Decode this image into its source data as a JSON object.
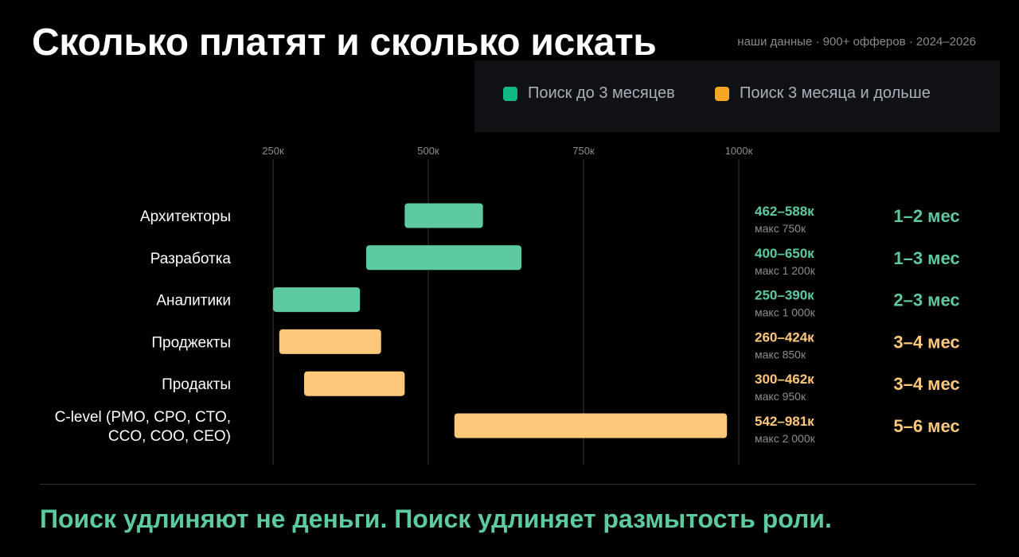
{
  "title": "Сколько платят и сколько искать",
  "meta": "наши данные · 900+ офферов · 2024–2026",
  "legend": [
    {
      "label": "Поиск до 3 месяцев",
      "color": "#10b981"
    },
    {
      "label": "Поиск 3 месяца и дольше",
      "color": "#f5a623"
    }
  ],
  "colors": {
    "short_bar": "#5dcaa0",
    "long_bar": "#fdc87a",
    "short_text": "#5dcaa0",
    "long_text": "#fdc87a",
    "grid": "#3a3a3a"
  },
  "chart_data": {
    "type": "bar",
    "orientation": "horizontal-range",
    "x_ticks": [
      250,
      500,
      750,
      1000
    ],
    "x_tick_labels": [
      "250к",
      "500к",
      "750к",
      "1000к"
    ],
    "xlim": [
      250,
      1000
    ],
    "grid": true,
    "categories": [
      {
        "label": [
          "Архитекторы"
        ],
        "min": 462,
        "max": 588,
        "range": "462–588к",
        "cap": "макс 750к",
        "duration": "1–2 мес",
        "group": "short"
      },
      {
        "label": [
          "Разработка"
        ],
        "min": 400,
        "max": 650,
        "range": "400–650к",
        "cap": "макс 1 200к",
        "duration": "1–3 мес",
        "group": "short"
      },
      {
        "label": [
          "Аналитики"
        ],
        "min": 250,
        "max": 390,
        "range": "250–390к",
        "cap": "макс 1 000к",
        "duration": "2–3 мес",
        "group": "short"
      },
      {
        "label": [
          "Проджекты"
        ],
        "min": 260,
        "max": 424,
        "range": "260–424к",
        "cap": "макс 850к",
        "duration": "3–4 мес",
        "group": "long"
      },
      {
        "label": [
          "Продакты"
        ],
        "min": 300,
        "max": 462,
        "range": "300–462к",
        "cap": "макс 950к",
        "duration": "3–4 мес",
        "group": "long"
      },
      {
        "label": [
          "C-level (PMO, CPO, CTO,",
          "CCO, COO, CEO)"
        ],
        "min": 542,
        "max": 981,
        "range": "542–981к",
        "cap": "макс 2 000к",
        "duration": "5–6 мес",
        "group": "long"
      }
    ]
  },
  "footer": "Поиск удлиняют не деньги. Поиск удлиняет размытость роли."
}
